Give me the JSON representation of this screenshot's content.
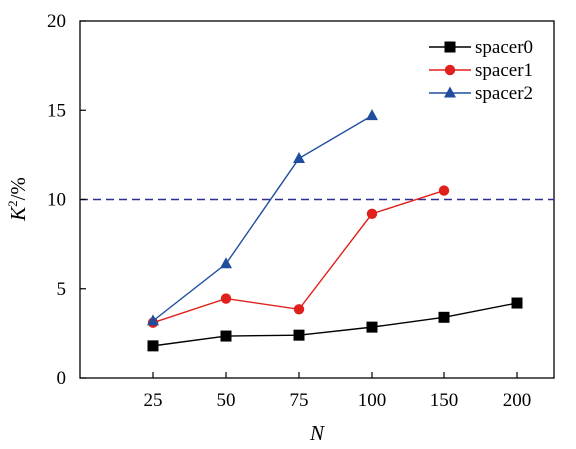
{
  "chart_data": {
    "type": "line",
    "xlabel": "N",
    "ylabel_main": "K",
    "ylabel_sup": "2",
    "ylabel_rest": "/%",
    "x_categories": [
      "25",
      "50",
      "75",
      "100",
      "150",
      "200"
    ],
    "ylim": [
      0,
      20
    ],
    "yticks": [
      "0",
      "5",
      "10",
      "15",
      "20"
    ],
    "ytick_values": [
      0,
      5,
      10,
      15,
      20
    ],
    "reference_line": {
      "y": 10,
      "style": "dashed",
      "color": "#2e2e8f"
    },
    "legend_position": "top-right",
    "series": [
      {
        "name": "spacer0",
        "color": "#000000",
        "marker": "square",
        "values": [
          1.8,
          2.35,
          2.4,
          2.85,
          3.4,
          4.2
        ]
      },
      {
        "name": "spacer1",
        "color": "#e0201c",
        "marker": "circle",
        "values": [
          3.1,
          4.45,
          3.85,
          9.2,
          10.5,
          null
        ]
      },
      {
        "name": "spacer2",
        "color": "#1f4e9e",
        "marker": "triangle",
        "values": [
          3.2,
          6.4,
          12.3,
          14.7,
          null,
          null
        ]
      }
    ]
  }
}
